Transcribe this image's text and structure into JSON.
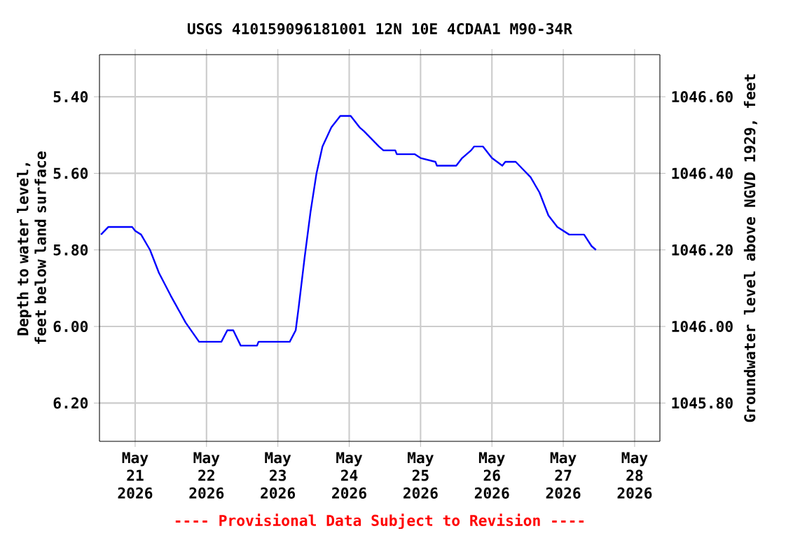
{
  "chart_data": {
    "type": "line",
    "title": "USGS 410159096181001  12N 10E 4CDAA1 M90-34R",
    "xlabel": null,
    "ylabel": "Depth to water level, feet below land surface",
    "y2label": "Groundwater level above NGVD 1929, feet",
    "annotations": [
      "---- Provisional Data Subject to Revision ----"
    ],
    "grid": true,
    "marker": "none",
    "line_style": "solid",
    "xlim": [
      "2026-05-20T12:00",
      "2026-05-28T08:30"
    ],
    "xticks": [
      {
        "value": "2026-05-21",
        "label": "May 21 2026"
      },
      {
        "value": "2026-05-22",
        "label": "May 22 2026"
      },
      {
        "value": "2026-05-23",
        "label": "May 23 2026"
      },
      {
        "value": "2026-05-24",
        "label": "May 24 2026"
      },
      {
        "value": "2026-05-25",
        "label": "May 25 2026"
      },
      {
        "value": "2026-05-26",
        "label": "May 26 2026"
      },
      {
        "value": "2026-05-27",
        "label": "May 27 2026"
      },
      {
        "value": "2026-05-28",
        "label": "May 28 2026"
      }
    ],
    "ylim": [
      6.3,
      5.29
    ],
    "yticks": [
      {
        "value": 5.4,
        "label": "5.40"
      },
      {
        "value": 5.6,
        "label": "5.60"
      },
      {
        "value": 5.8,
        "label": "5.80"
      },
      {
        "value": 6.0,
        "label": "6.00"
      },
      {
        "value": 6.2,
        "label": "6.20"
      }
    ],
    "y2lim": [
      1045.7,
      1046.71
    ],
    "y2ticks": [
      {
        "value": 1045.8,
        "label": "1045.80"
      },
      {
        "value": 1046.0,
        "label": "1046.00"
      },
      {
        "value": 1046.2,
        "label": "1046.20"
      },
      {
        "value": 1046.4,
        "label": "1046.40"
      },
      {
        "value": 1046.6,
        "label": "1046.60"
      }
    ],
    "series": [
      {
        "color": "#0000ff",
        "x": [
          "2026-05-20T12:30",
          "2026-05-20T15:00",
          "2026-05-20T23:00",
          "2026-05-21T00:00",
          "2026-05-21T02:00",
          "2026-05-21T05:00",
          "2026-05-21T08:00",
          "2026-05-21T12:00",
          "2026-05-21T17:00",
          "2026-05-21T21:30",
          "2026-05-22T05:00",
          "2026-05-22T07:00",
          "2026-05-22T09:00",
          "2026-05-22T11:30",
          "2026-05-22T17:00",
          "2026-05-22T17:30",
          "2026-05-23T04:00",
          "2026-05-23T06:00",
          "2026-05-23T07:00",
          "2026-05-23T09:00",
          "2026-05-23T11:00",
          "2026-05-23T13:00",
          "2026-05-23T15:00",
          "2026-05-23T18:00",
          "2026-05-23T21:00",
          "2026-05-24T00:30",
          "2026-05-24T03:30",
          "2026-05-24T05:00",
          "2026-05-24T10:00",
          "2026-05-24T11:30",
          "2026-05-24T15:30",
          "2026-05-24T16:00",
          "2026-05-24T22:00",
          "2026-05-25T00:00",
          "2026-05-25T05:00",
          "2026-05-25T05:30",
          "2026-05-25T12:00",
          "2026-05-25T14:00",
          "2026-05-25T17:00",
          "2026-05-25T18:00",
          "2026-05-25T21:00",
          "2026-05-26T00:00",
          "2026-05-26T03:30",
          "2026-05-26T04:30",
          "2026-05-26T08:00",
          "2026-05-26T10:30",
          "2026-05-26T13:00",
          "2026-05-26T16:00",
          "2026-05-26T19:00",
          "2026-05-26T22:00",
          "2026-05-27T02:00",
          "2026-05-27T07:00",
          "2026-05-27T09:30",
          "2026-05-27T11:00"
        ],
        "values": [
          5.76,
          5.74,
          5.74,
          5.75,
          5.76,
          5.8,
          5.86,
          5.92,
          5.99,
          6.04,
          6.04,
          6.01,
          6.01,
          6.05,
          6.05,
          6.04,
          6.04,
          6.01,
          5.95,
          5.82,
          5.7,
          5.6,
          5.53,
          5.48,
          5.45,
          5.45,
          5.48,
          5.49,
          5.53,
          5.54,
          5.54,
          5.55,
          5.55,
          5.56,
          5.57,
          5.58,
          5.58,
          5.56,
          5.54,
          5.53,
          5.53,
          5.56,
          5.58,
          5.57,
          5.57,
          5.59,
          5.61,
          5.65,
          5.71,
          5.74,
          5.76,
          5.76,
          5.79,
          5.8
        ]
      }
    ]
  }
}
